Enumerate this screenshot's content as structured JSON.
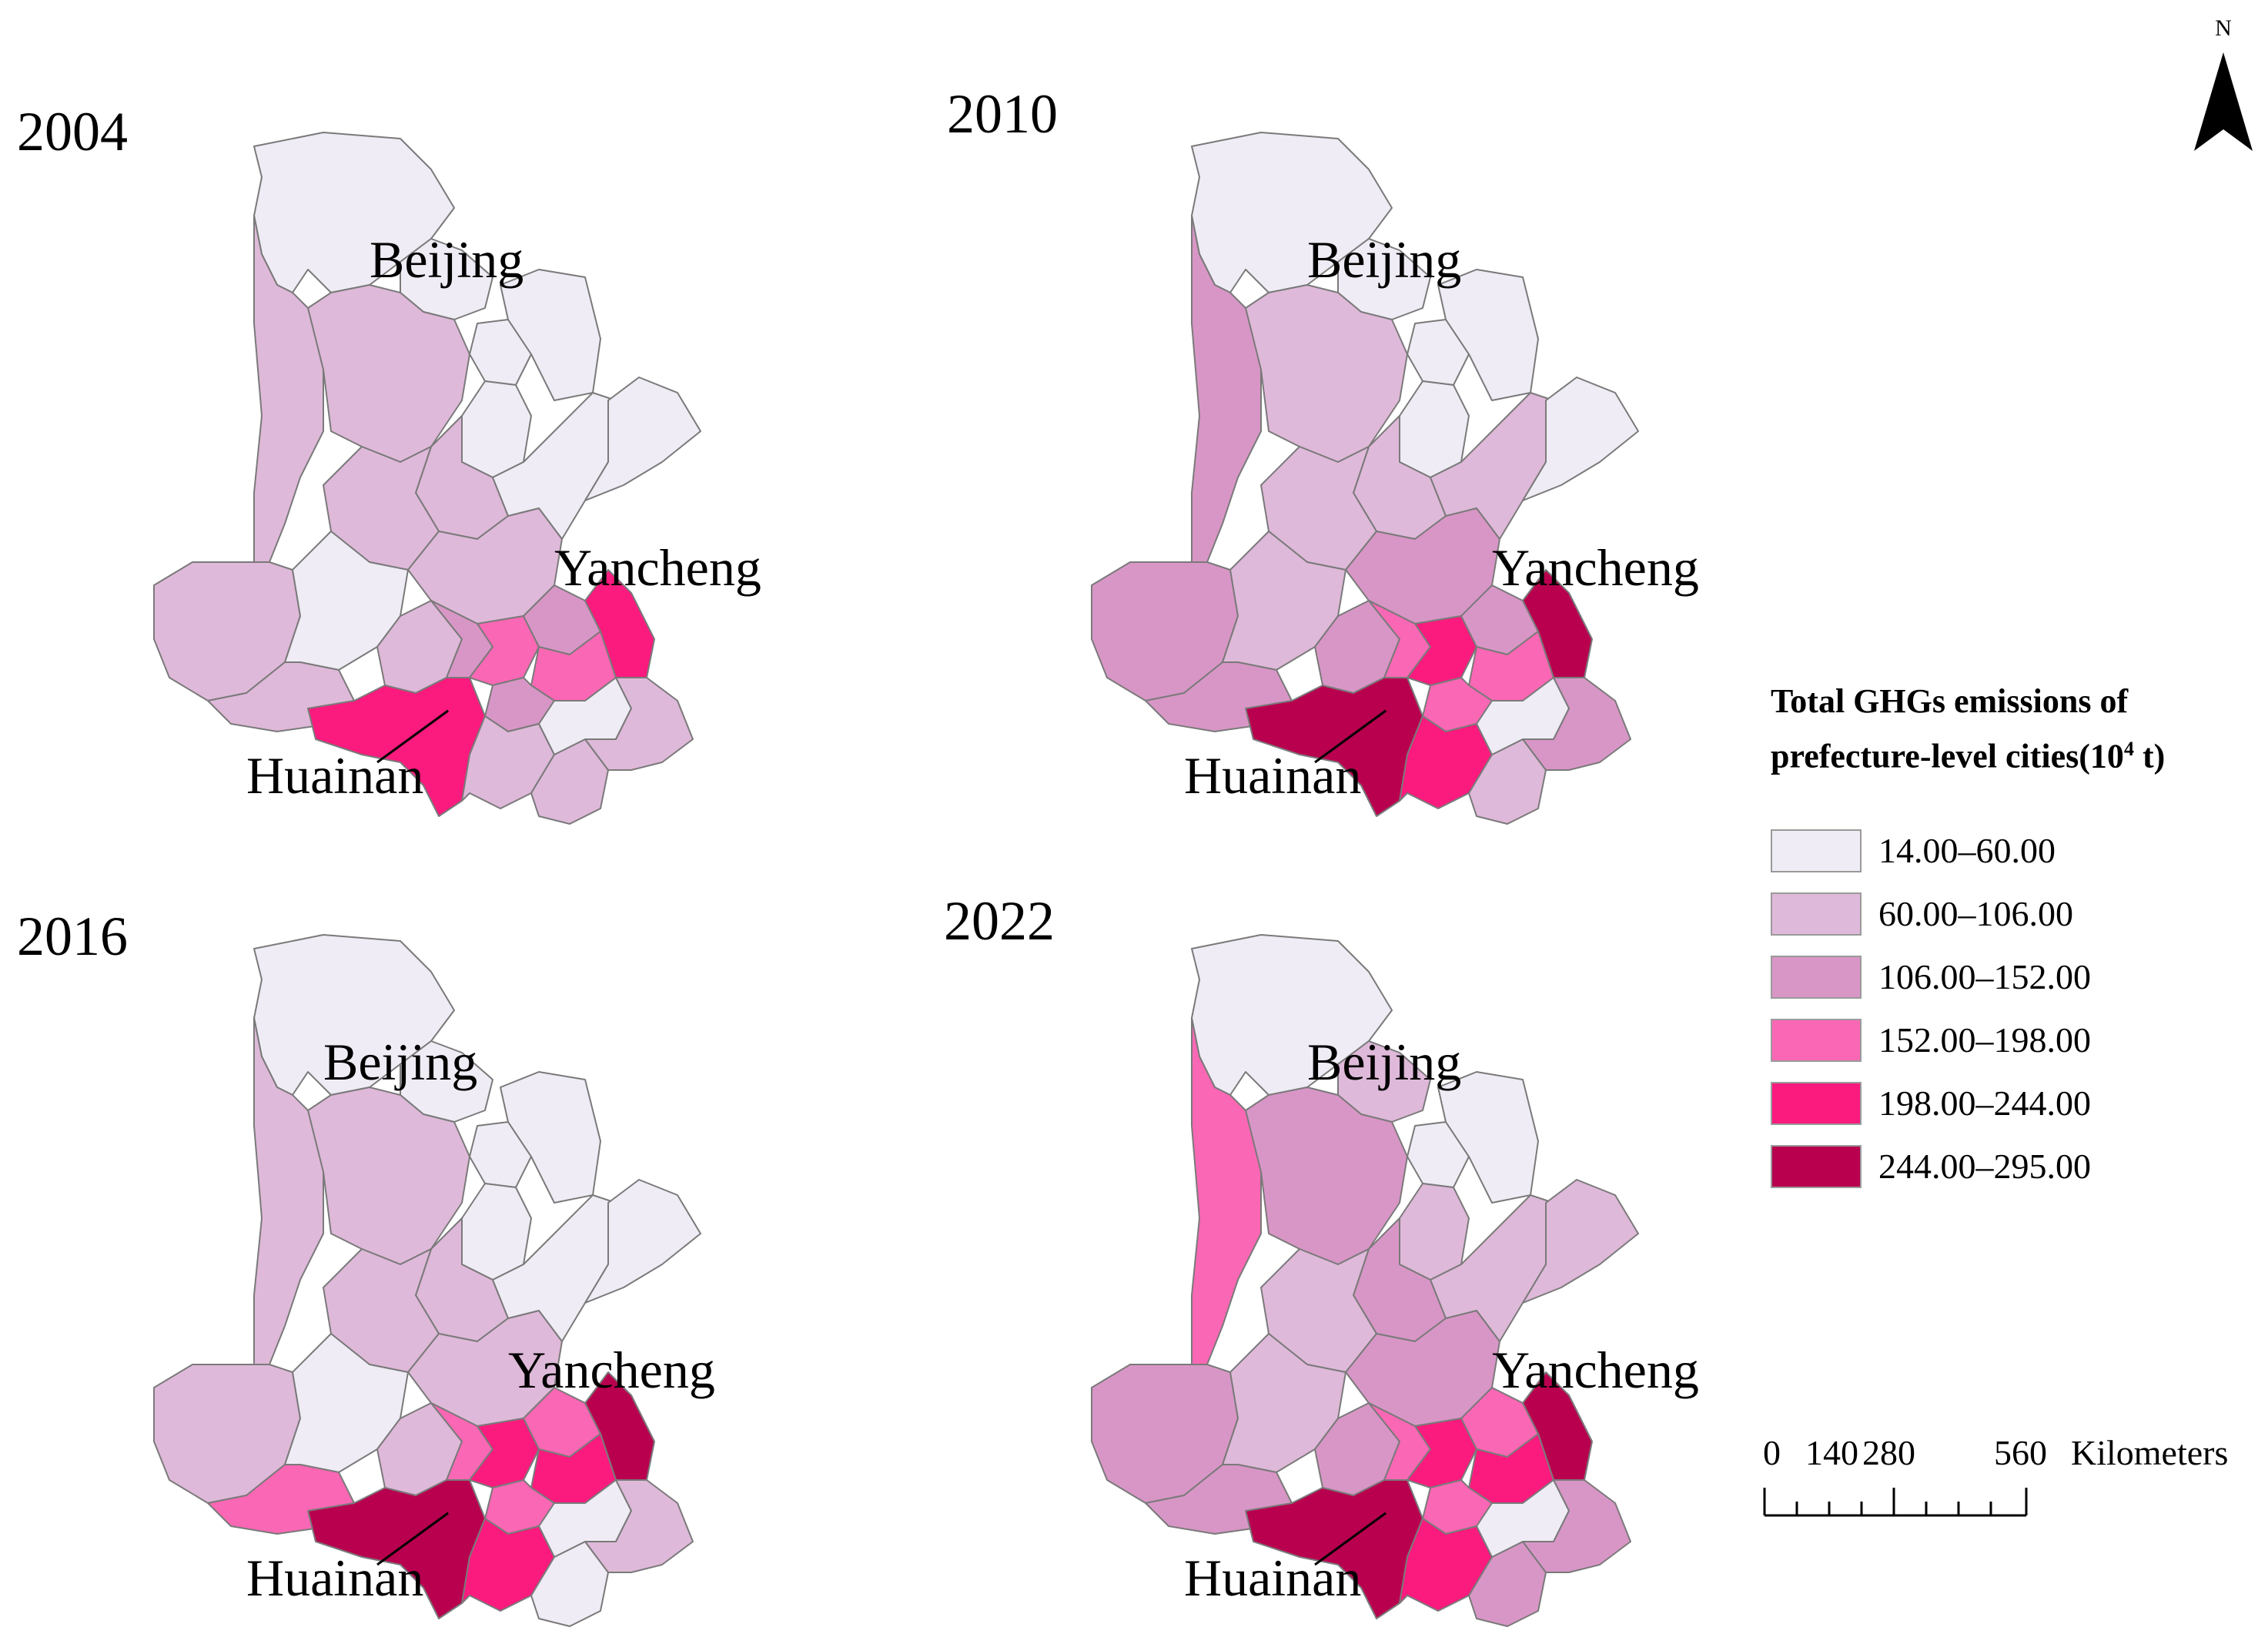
{
  "legend": {
    "title_line1": "Total GHGs emissions of",
    "title_line2_pre": "prefecture-level cities(10",
    "title_sup": "4",
    "title_line2_post": " t)",
    "classes": [
      {
        "label": "14.00–60.00",
        "color": "#efecf5"
      },
      {
        "label": "60.00–106.00",
        "color": "#dfb9d9"
      },
      {
        "label": "106.00–152.00",
        "color": "#d896c6"
      },
      {
        "label": "152.00–198.00",
        "color": "#fa67b4"
      },
      {
        "label": "198.00–244.00",
        "color": "#fb1a7e"
      },
      {
        "label": "244.00–295.00",
        "color": "#b8004f"
      }
    ]
  },
  "north_arrow": {
    "label": "N"
  },
  "scale_bar": {
    "ticks": [
      "0",
      "140",
      "280",
      "560"
    ],
    "unit": "Kilometers"
  },
  "maps": [
    {
      "year": "2004",
      "labels": {
        "beijing": "Beijing",
        "yancheng": "Yancheng",
        "huainan": "Huainan"
      },
      "regions": [
        [
          "north",
          0
        ],
        [
          "beijing",
          0
        ],
        [
          "tianjin",
          0
        ],
        [
          "northeast",
          0
        ],
        [
          "hebei_w",
          1
        ],
        [
          "hebei_c",
          1
        ],
        [
          "hebei_e",
          0
        ],
        [
          "cangzhou",
          1
        ],
        [
          "shandong_nw",
          1
        ],
        [
          "shandong_c",
          1
        ],
        [
          "shandong_e",
          0
        ],
        [
          "shandong_pen",
          0
        ],
        [
          "henan_w",
          1
        ],
        [
          "henan_c",
          0
        ],
        [
          "henan_s",
          1
        ],
        [
          "henan_e",
          1
        ],
        [
          "heze",
          2
        ],
        [
          "xuzhou",
          3
        ],
        [
          "lianyungang",
          2
        ],
        [
          "yancheng",
          4
        ],
        [
          "suqian",
          3
        ],
        [
          "huaian",
          2
        ],
        [
          "huainan",
          4
        ],
        [
          "bengbu",
          1
        ],
        [
          "anhui_s",
          1
        ],
        [
          "nanjing",
          0
        ],
        [
          "jiangsu_se",
          1
        ]
      ]
    },
    {
      "year": "2010",
      "labels": {
        "beijing": "Beijing",
        "yancheng": "Yancheng",
        "huainan": "Huainan"
      },
      "regions": [
        [
          "north",
          0
        ],
        [
          "beijing",
          0
        ],
        [
          "tianjin",
          0
        ],
        [
          "northeast",
          0
        ],
        [
          "hebei_w",
          2
        ],
        [
          "hebei_c",
          1
        ],
        [
          "hebei_e",
          0
        ],
        [
          "cangzhou",
          1
        ],
        [
          "shandong_nw",
          1
        ],
        [
          "shandong_c",
          2
        ],
        [
          "shandong_e",
          1
        ],
        [
          "shandong_pen",
          0
        ],
        [
          "henan_w",
          2
        ],
        [
          "henan_c",
          1
        ],
        [
          "henan_s",
          2
        ],
        [
          "henan_e",
          2
        ],
        [
          "heze",
          3
        ],
        [
          "xuzhou",
          4
        ],
        [
          "lianyungang",
          2
        ],
        [
          "yancheng",
          5
        ],
        [
          "suqian",
          3
        ],
        [
          "huaian",
          3
        ],
        [
          "huainan",
          5
        ],
        [
          "bengbu",
          4
        ],
        [
          "anhui_s",
          1
        ],
        [
          "nanjing",
          0
        ],
        [
          "jiangsu_se",
          2
        ]
      ]
    },
    {
      "year": "2016",
      "labels": {
        "beijing": "Beijing",
        "yancheng": "Yancheng",
        "huainan": "Huainan"
      },
      "regions": [
        [
          "north",
          0
        ],
        [
          "beijing",
          0
        ],
        [
          "tianjin",
          0
        ],
        [
          "northeast",
          0
        ],
        [
          "hebei_w",
          1
        ],
        [
          "hebei_c",
          1
        ],
        [
          "hebei_e",
          0
        ],
        [
          "cangzhou",
          1
        ],
        [
          "shandong_nw",
          1
        ],
        [
          "shandong_c",
          1
        ],
        [
          "shandong_e",
          0
        ],
        [
          "shandong_pen",
          0
        ],
        [
          "henan_w",
          1
        ],
        [
          "henan_c",
          0
        ],
        [
          "henan_s",
          3
        ],
        [
          "henan_e",
          1
        ],
        [
          "heze",
          3
        ],
        [
          "xuzhou",
          4
        ],
        [
          "lianyungang",
          3
        ],
        [
          "yancheng",
          5
        ],
        [
          "suqian",
          4
        ],
        [
          "huaian",
          3
        ],
        [
          "huainan",
          5
        ],
        [
          "bengbu",
          4
        ],
        [
          "anhui_s",
          0
        ],
        [
          "nanjing",
          0
        ],
        [
          "jiangsu_se",
          1
        ]
      ]
    },
    {
      "year": "2022",
      "labels": {
        "beijing": "Beijing",
        "yancheng": "Yancheng",
        "huainan": "Huainan"
      },
      "regions": [
        [
          "north",
          0
        ],
        [
          "beijing",
          1
        ],
        [
          "tianjin",
          0
        ],
        [
          "northeast",
          0
        ],
        [
          "hebei_w",
          3
        ],
        [
          "hebei_c",
          2
        ],
        [
          "hebei_e",
          1
        ],
        [
          "cangzhou",
          2
        ],
        [
          "shandong_nw",
          1
        ],
        [
          "shandong_c",
          2
        ],
        [
          "shandong_e",
          1
        ],
        [
          "shandong_pen",
          1
        ],
        [
          "henan_w",
          2
        ],
        [
          "henan_c",
          1
        ],
        [
          "henan_s",
          2
        ],
        [
          "henan_e",
          2
        ],
        [
          "heze",
          3
        ],
        [
          "xuzhou",
          4
        ],
        [
          "lianyungang",
          3
        ],
        [
          "yancheng",
          5
        ],
        [
          "suqian",
          4
        ],
        [
          "huaian",
          3
        ],
        [
          "huainan",
          5
        ],
        [
          "bengbu",
          4
        ],
        [
          "anhui_s",
          2
        ],
        [
          "nanjing",
          0
        ],
        [
          "jiangsu_se",
          2
        ]
      ]
    }
  ]
}
